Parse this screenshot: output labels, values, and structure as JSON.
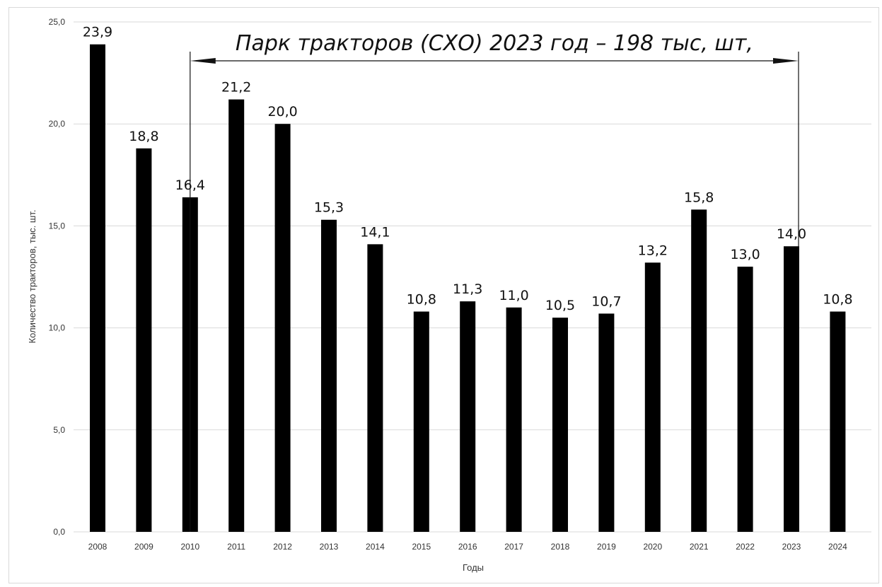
{
  "chart_data": {
    "type": "bar",
    "categories": [
      "2008",
      "2009",
      "2010",
      "2011",
      "2012",
      "2013",
      "2014",
      "2015",
      "2016",
      "2017",
      "2018",
      "2019",
      "2020",
      "2021",
      "2022",
      "2023",
      "2024"
    ],
    "values": [
      23.9,
      18.8,
      16.4,
      21.2,
      20.0,
      15.3,
      14.1,
      10.8,
      11.3,
      11.0,
      10.5,
      10.7,
      13.2,
      15.8,
      13.0,
      14.0,
      10.8
    ],
    "data_labels": [
      "23,9",
      "18,8",
      "16,4",
      "21,2",
      "20,0",
      "15,3",
      "14,1",
      "10,8",
      "11,3",
      "11,0",
      "10,5",
      "10,7",
      "13,2",
      "15,8",
      "13,0",
      "14,0",
      "10,8"
    ],
    "title": "",
    "xlabel": "Годы",
    "ylabel": "Количество тракторов, тыс. шт.",
    "ylim": [
      0,
      25
    ],
    "yticks": [
      0,
      5,
      10,
      15,
      20,
      25
    ],
    "ytick_labels": [
      "0,0",
      "5,0",
      "10,0",
      "15,0",
      "20,0",
      "25,0"
    ],
    "grid": true,
    "legend": "none",
    "bar_color": "#000000",
    "grid_color": "#d9d9d9",
    "annotation": {
      "text": "Парк тракторов (СХО) 2023 год – 198 тыс, шт,",
      "from_category": "2010",
      "to_category": "2023"
    }
  }
}
